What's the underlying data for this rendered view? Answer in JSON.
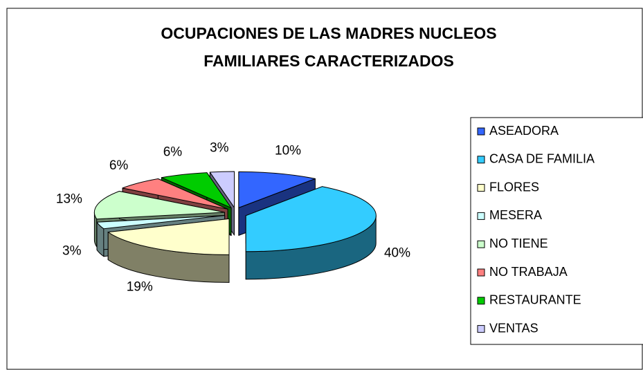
{
  "chart_data": {
    "type": "pie",
    "title": [
      "OCUPACIONES DE LAS MADRES  NUCLEOS",
      "FAMILIARES CARACTERIZADOS"
    ],
    "categories": [
      "ASEADORA",
      "CASA DE FAMILIA",
      "FLORES",
      "MESERA",
      "NO TIENE",
      "NO TRABAJA",
      "RESTAURANTE",
      "VENTAS"
    ],
    "values": [
      10,
      40,
      19,
      3,
      13,
      6,
      6,
      3
    ],
    "value_labels": [
      "10%",
      "40%",
      "19%",
      "3%",
      "13%",
      "6%",
      "6%",
      "3%"
    ],
    "colors": [
      "#3366ff",
      "#33ccff",
      "#ffffcc",
      "#ccffff",
      "#ccffcc",
      "#ff8080",
      "#00cc00",
      "#ccccff"
    ],
    "legend": "right"
  }
}
